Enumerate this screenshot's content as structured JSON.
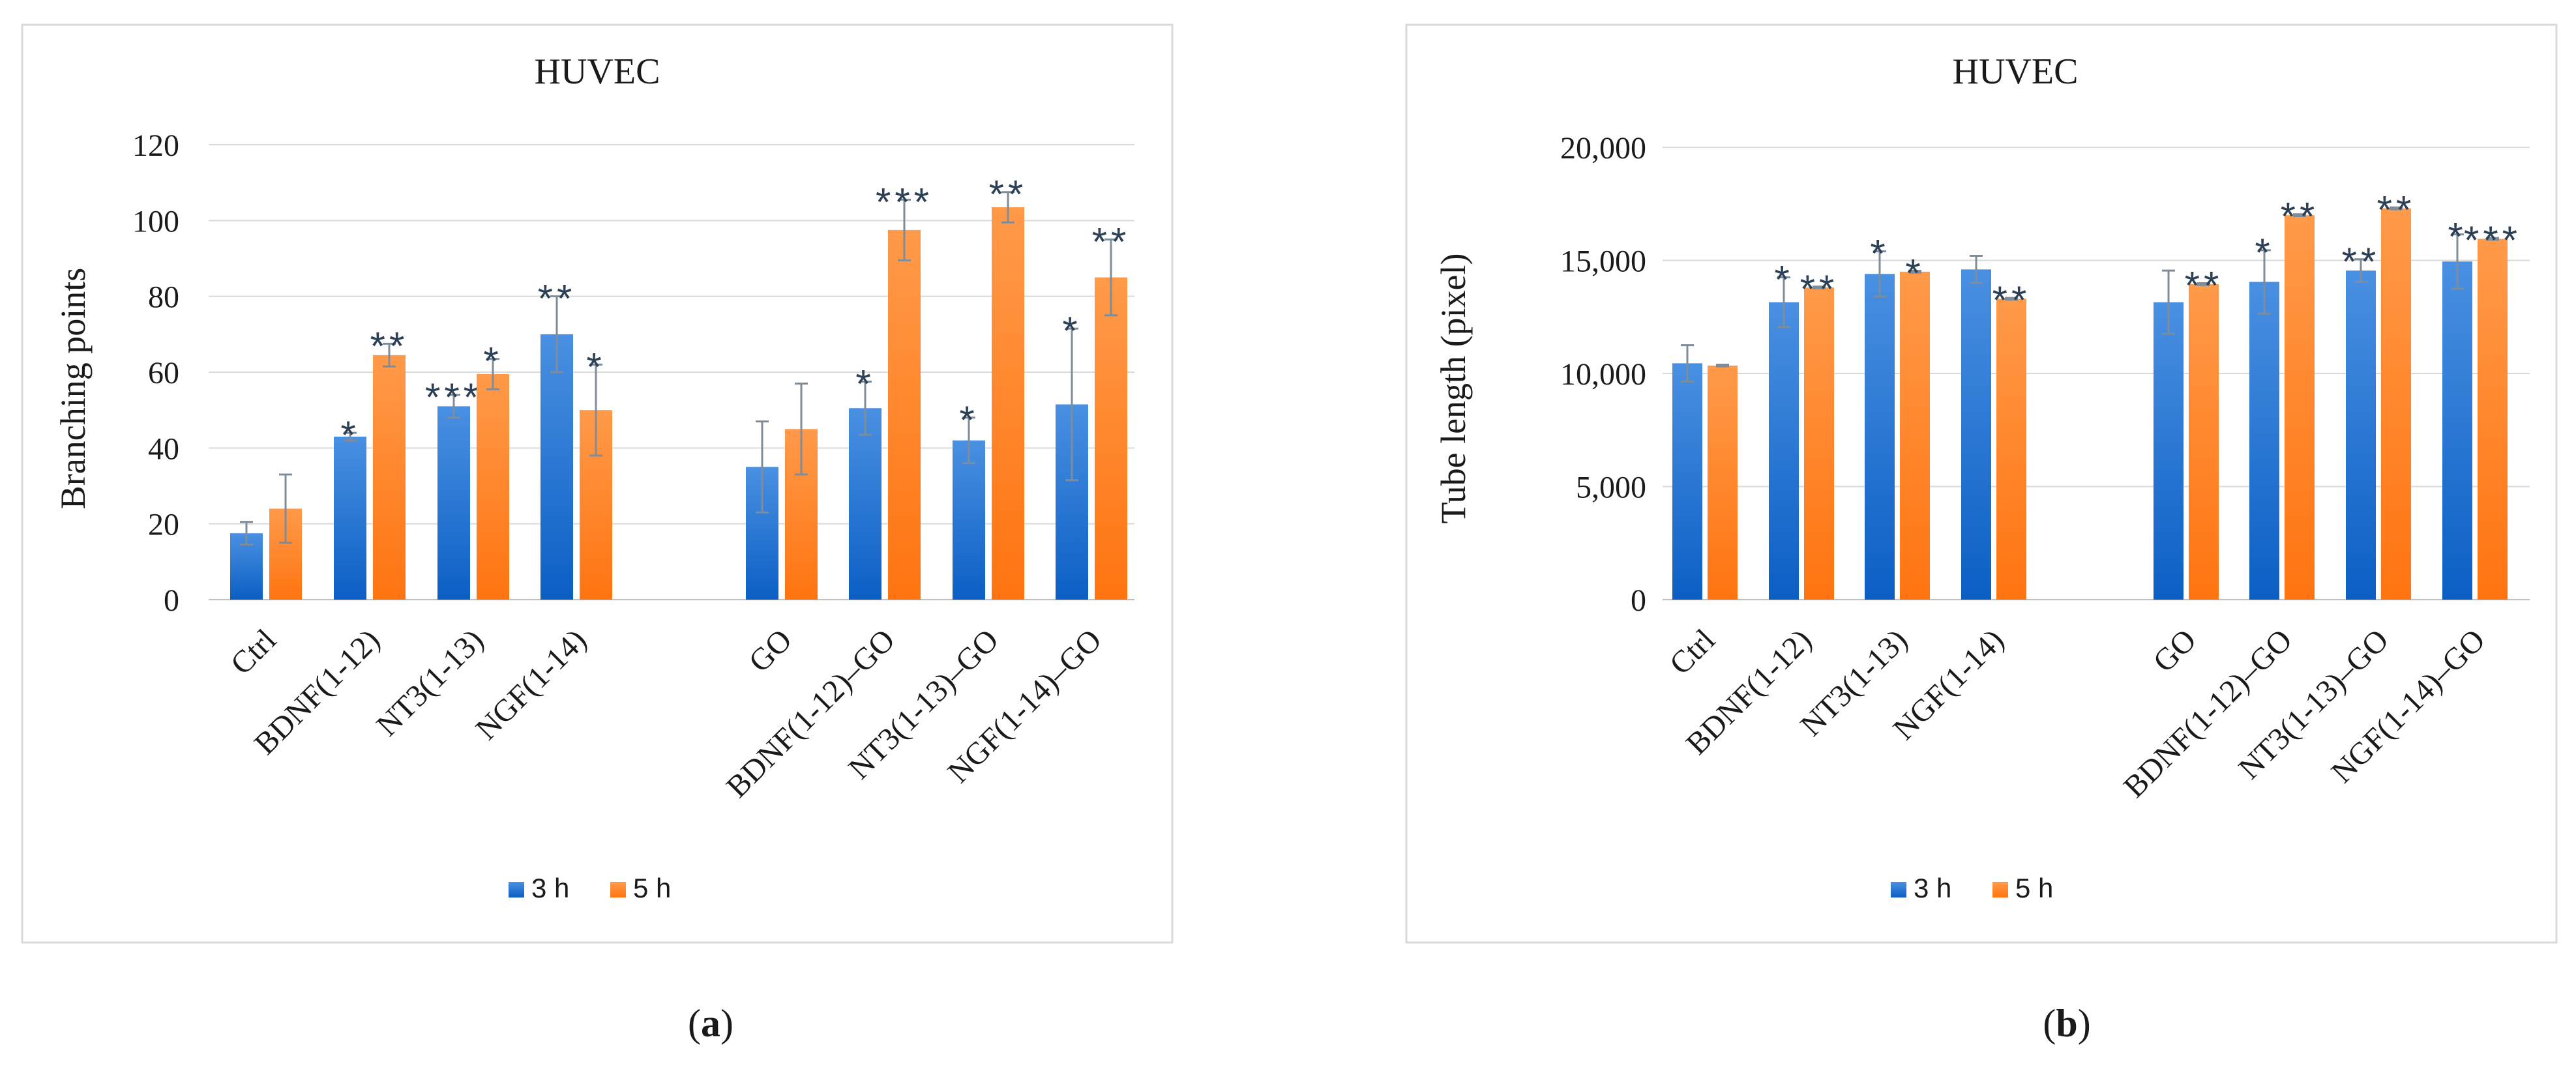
{
  "colors": {
    "series_3h": "#1f77d4",
    "series_5h": "#ff7f1a",
    "gridline": "#d9d9d9",
    "frame": "#d9d9d9",
    "text": "#1a1a1a",
    "significance": "#2b3f55",
    "errorbar": "#7f8c99"
  },
  "chart_data": [
    {
      "type": "bar",
      "panel_label": "(a)",
      "panel_letter": "a",
      "title": "HUVEC",
      "xlabel": "",
      "ylabel": "Branching points",
      "ylim": [
        0,
        120
      ],
      "yticks": [
        0,
        20,
        40,
        60,
        80,
        100,
        120
      ],
      "ytick_labels": [
        "0",
        "20",
        "40",
        "60",
        "80",
        "100",
        "120"
      ],
      "grid": true,
      "legend_position": "bottom-center",
      "categories": [
        "Ctrl",
        "BDNF(1-12)",
        "NT3(1-13)",
        "NGF(1-14)",
        "GO",
        "BDNF(1-12)–GO",
        "NT3(1-13)–GO",
        "NGF(1-14)–GO"
      ],
      "series": [
        {
          "name": "3 h",
          "values": [
            17.5,
            43,
            51,
            70,
            35,
            50.5,
            42,
            51.5
          ],
          "errors": [
            3,
            1,
            3,
            10,
            12,
            7,
            6,
            20
          ],
          "significance": [
            "",
            "*",
            "***",
            "**",
            "",
            "*",
            "*",
            "*"
          ]
        },
        {
          "name": "5 h",
          "values": [
            24,
            64.5,
            59.5,
            50,
            45,
            97.5,
            103.5,
            85
          ],
          "errors": [
            9,
            3,
            4,
            12,
            12,
            8,
            4,
            10
          ],
          "significance": [
            "",
            "**",
            "*",
            "*",
            "",
            "***",
            "**",
            "**"
          ]
        }
      ]
    },
    {
      "type": "bar",
      "panel_label": "(b)",
      "panel_letter": "b",
      "title": "HUVEC",
      "xlabel": "",
      "ylabel": "Tube length (pixel)",
      "ylim": [
        0,
        20000
      ],
      "yticks": [
        0,
        5000,
        10000,
        15000,
        20000
      ],
      "ytick_labels": [
        "0",
        "5,000",
        "10,000",
        "15,000",
        "20,000"
      ],
      "grid": true,
      "legend_position": "bottom-center",
      "categories": [
        "Ctrl",
        "BDNF(1-12)",
        "NT3(1-13)",
        "NGF(1-14)",
        "GO",
        "BDNF(1-12)–GO",
        "NT3(1-13)–GO",
        "NGF(1-14)–GO"
      ],
      "series": [
        {
          "name": "3 h",
          "values": [
            10450,
            13150,
            14400,
            14600,
            13150,
            14050,
            14550,
            14950
          ],
          "errors": [
            800,
            1100,
            1000,
            600,
            1400,
            1400,
            500,
            1200
          ],
          "significance": [
            "",
            "*",
            "*",
            "",
            "",
            "*",
            "**",
            "*"
          ]
        },
        {
          "name": "5 h",
          "values": [
            10350,
            13800,
            14500,
            13300,
            13950,
            17000,
            17300,
            15950
          ],
          "errors": [
            40,
            40,
            40,
            40,
            40,
            40,
            40,
            40
          ],
          "significance": [
            "",
            "**",
            "*",
            "**",
            "**",
            "**",
            "**",
            "***"
          ]
        }
      ]
    }
  ]
}
